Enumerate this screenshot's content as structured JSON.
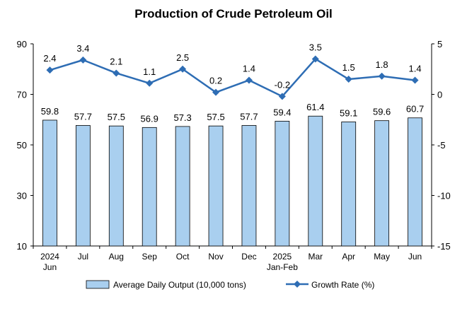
{
  "chart_data": {
    "type": "bar",
    "title": "Production of Crude Petroleum Oil",
    "categories": [
      [
        "2024",
        "Jun"
      ],
      [
        "Jul"
      ],
      [
        "Aug"
      ],
      [
        "Sep"
      ],
      [
        "Oct"
      ],
      [
        "Nov"
      ],
      [
        "Dec"
      ],
      [
        "2025",
        "Jan-Feb"
      ],
      [
        "Mar"
      ],
      [
        "Apr"
      ],
      [
        "May"
      ],
      [
        "Jun"
      ]
    ],
    "series": [
      {
        "name": "Average Daily Output (10,000 tons)",
        "type": "bar",
        "axis": "left",
        "color": "#a9cfef",
        "edge_color": "#000000",
        "values": [
          59.8,
          57.7,
          57.5,
          56.9,
          57.3,
          57.5,
          57.7,
          59.4,
          61.4,
          59.1,
          59.6,
          60.7
        ],
        "labels": [
          "59.8",
          "57.7",
          "57.5",
          "56.9",
          "57.3",
          "57.5",
          "57.7",
          "59.4",
          "61.4",
          "59.1",
          "59.6",
          "60.7"
        ]
      },
      {
        "name": "Growth Rate (%)",
        "type": "line",
        "axis": "right",
        "color": "#2e6db4",
        "marker": "diamond",
        "values": [
          2.4,
          3.4,
          2.1,
          1.1,
          2.5,
          0.2,
          1.4,
          -0.2,
          3.5,
          1.5,
          1.8,
          1.4
        ],
        "labels": [
          "2.4",
          "3.4",
          "2.1",
          "1.1",
          "2.5",
          "0.2",
          "1.4",
          "-0.2",
          "3.5",
          "1.5",
          "1.8",
          "1.4"
        ]
      }
    ],
    "left_axis": {
      "ylim": [
        10,
        90
      ],
      "ticks": [
        10,
        30,
        50,
        70,
        90
      ],
      "tick_labels": [
        "10",
        "30",
        "50",
        "70",
        "90"
      ]
    },
    "right_axis": {
      "ylim": [
        -15,
        5
      ],
      "ticks": [
        -15,
        -10,
        -5,
        0,
        5
      ],
      "tick_labels": [
        "-15",
        "-10",
        "-5",
        "0",
        "5"
      ]
    },
    "grid": false,
    "legend_position": "bottom"
  }
}
